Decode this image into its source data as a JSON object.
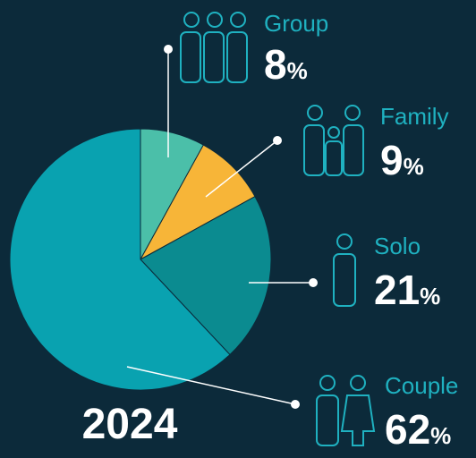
{
  "chart_data": {
    "type": "pie",
    "title": "2024",
    "categories": [
      "Group",
      "Family",
      "Solo",
      "Couple"
    ],
    "values": [
      8,
      9,
      21,
      62
    ],
    "unit": "%",
    "colors": [
      "#4bbfa9",
      "#f7b538",
      "#0b8b90",
      "#09a2b0"
    ]
  }
}
